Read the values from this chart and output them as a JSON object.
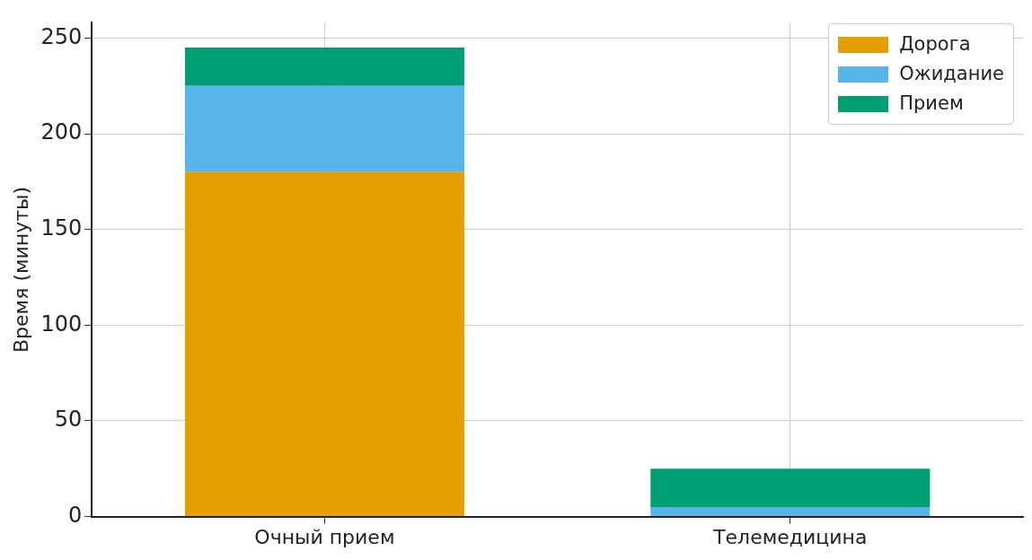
{
  "chart_data": {
    "type": "bar",
    "ylabel": "Время (минуты)",
    "categories": [
      "Очный прием",
      "Телемедицина"
    ],
    "series": [
      {
        "name": "Дорога",
        "color": "#e69f00",
        "values": [
          180,
          0
        ]
      },
      {
        "name": "Ожидание",
        "color": "#56b4e9",
        "values": [
          45,
          5
        ]
      },
      {
        "name": "Прием",
        "color": "#009e73",
        "values": [
          20,
          20
        ]
      }
    ],
    "stacked": true,
    "ylim": [
      0,
      258
    ],
    "yticks": [
      0,
      50,
      100,
      150,
      200,
      250
    ],
    "grid": true,
    "legend": "top right"
  }
}
